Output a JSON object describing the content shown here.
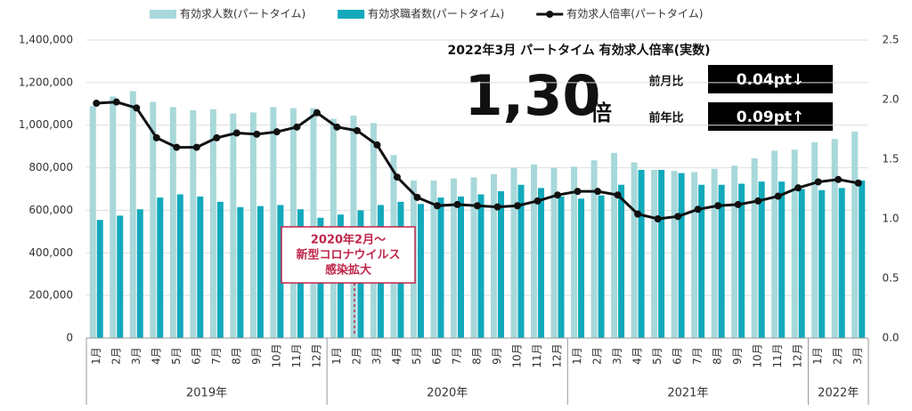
{
  "chart_data": {
    "type": "bar_line",
    "title": "2022年3月 パートタイム 有効求人倍率(実数)",
    "headline_value": "1,30",
    "headline_unit": "倍",
    "comparisons": [
      {
        "label": "前月比",
        "value": "0.04pt↓"
      },
      {
        "label": "前年比",
        "value": "0.09pt↑"
      }
    ],
    "annotation": [
      "2020年2月～",
      "新型コロナウイルス",
      "感染拡大"
    ],
    "annotation_index": 13,
    "categories": [
      "1月",
      "2月",
      "3月",
      "4月",
      "5月",
      "6月",
      "7月",
      "8月",
      "9月",
      "10月",
      "11月",
      "12月",
      "1月",
      "2月",
      "3月",
      "4月",
      "5月",
      "6月",
      "7月",
      "8月",
      "9月",
      "10月",
      "11月",
      "12月",
      "1月",
      "2月",
      "3月",
      "4月",
      "5月",
      "6月",
      "7月",
      "8月",
      "9月",
      "10月",
      "11月",
      "12月",
      "1月",
      "2月",
      "3月"
    ],
    "year_groups": [
      {
        "label": "2019年",
        "months": 12
      },
      {
        "label": "2020年",
        "months": 12
      },
      {
        "label": "2021年",
        "months": 12
      },
      {
        "label": "2022年",
        "months": 3
      }
    ],
    "series": [
      {
        "name": "有効求人数(パートタイム)",
        "color": "#a8d8da",
        "values": [
          1090000,
          1135000,
          1160000,
          1110000,
          1085000,
          1070000,
          1075000,
          1055000,
          1060000,
          1085000,
          1080000,
          1080000,
          1030000,
          1045000,
          1010000,
          860000,
          740000,
          740000,
          750000,
          755000,
          770000,
          800000,
          815000,
          800000,
          805000,
          835000,
          870000,
          825000,
          790000,
          785000,
          780000,
          795000,
          810000,
          845000,
          880000,
          885000,
          920000,
          935000,
          970000
        ]
      },
      {
        "name": "有効求職者数(パートタイム)",
        "color": "#12a9bb",
        "values": [
          555000,
          575000,
          605000,
          660000,
          675000,
          665000,
          640000,
          615000,
          620000,
          625000,
          605000,
          565000,
          580000,
          600000,
          625000,
          640000,
          630000,
          660000,
          665000,
          675000,
          690000,
          720000,
          705000,
          665000,
          655000,
          670000,
          720000,
          790000,
          790000,
          775000,
          720000,
          720000,
          725000,
          735000,
          735000,
          700000,
          695000,
          705000,
          740000
        ]
      },
      {
        "name": "有効求人倍率(パートタイム)",
        "color": "#111111",
        "axis": "y2",
        "values": [
          1.97,
          1.98,
          1.93,
          1.68,
          1.6,
          1.6,
          1.68,
          1.72,
          1.71,
          1.73,
          1.77,
          1.89,
          1.77,
          1.74,
          1.62,
          1.35,
          1.18,
          1.11,
          1.12,
          1.11,
          1.1,
          1.11,
          1.15,
          1.2,
          1.23,
          1.23,
          1.2,
          1.04,
          1.0,
          1.02,
          1.08,
          1.11,
          1.12,
          1.15,
          1.19,
          1.26,
          1.31,
          1.33,
          1.3
        ]
      }
    ],
    "ylim": [
      0,
      1400000
    ],
    "yticks": [
      0,
      {
        "value": 200000,
        "label": "200,000"
      },
      {
        "value": 400000,
        "label": "400,000"
      },
      {
        "value": 600000,
        "label": "600,000"
      },
      {
        "value": 800000,
        "label": "800,000"
      },
      {
        "value": 1000000,
        "label": "1,000,000"
      },
      {
        "value": 1200000,
        "label": "1,200,000"
      },
      {
        "value": 1400000,
        "label": "1,400,000"
      }
    ],
    "y2lim": [
      0,
      2.5
    ],
    "y2ticks": [
      {
        "value": 0,
        "label": "0.0"
      },
      {
        "value": 0.5,
        "label": "0.5"
      },
      {
        "value": 1,
        "label": "1.0"
      },
      {
        "value": 1.5,
        "label": "1.5"
      },
      {
        "value": 2,
        "label": "2.0"
      },
      {
        "value": 2.5,
        "label": "2.5"
      }
    ],
    "grid": true
  }
}
